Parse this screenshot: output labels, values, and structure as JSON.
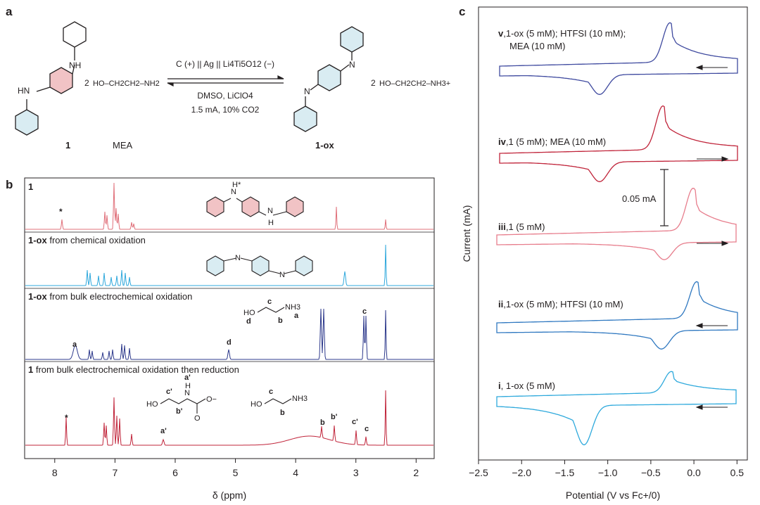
{
  "panel_labels": {
    "a": "a",
    "b": "b",
    "c": "c"
  },
  "panel_a": {
    "compound_1_label": "1",
    "mea_label": "MEA",
    "compound_1ox_label": "1-ox",
    "mea_reactant_prefix": "2",
    "mea_formula": "HO–CH2CH2–NH2",
    "product_prefix": "2",
    "product_formula": "HO–CH2CH2–NH3+",
    "cell_line": "C (+) || Ag || Li4Ti5O12 (−)",
    "solvent_line": "DMSO, LiClO4",
    "conditions_line": "1.5 mA, 10% CO2",
    "nh_label": "NH",
    "hn_label": "HN",
    "n_label": "N"
  },
  "panel_b": {
    "spectra": [
      {
        "title_bold": "1",
        "title_rest": "",
        "color": "#e0707a"
      },
      {
        "title_bold": "1-ox",
        "title_rest": " from chemical oxidation",
        "color": "#2fa8dc"
      },
      {
        "title_bold": "1-ox",
        "title_rest": " from bulk electrochemical oxidation",
        "color": "#2e3a8c"
      },
      {
        "title_bold": "1",
        "title_rest": " from bulk electrochemical oxidation then reduction",
        "color": "#c0243a"
      }
    ],
    "peak_labels": {
      "star1": "*",
      "a": "a",
      "d": "d",
      "c": "c",
      "star4": "*",
      "a_prime": "a'",
      "b": "b",
      "b_prime": "b'",
      "c_prime": "c'",
      "c4": "c"
    },
    "struct_labels": {
      "ho": "HO",
      "nh3": "NH3",
      "a": "a",
      "b": "b",
      "c": "c",
      "d": "d",
      "c_prime": "c'",
      "b_prime": "b'",
      "a_prime": "a'",
      "carbamate_n": "N",
      "carbamate_h": "H",
      "carbamate_o": "O",
      "carbamate_ominus": "O−",
      "nh_star": "H*",
      "n_h": "N",
      "h": "H"
    },
    "x_axis": {
      "label": "δ (ppm)",
      "ticks": [
        "8",
        "7",
        "6",
        "5",
        "4",
        "3",
        "2"
      ],
      "range": [
        8.5,
        1.7
      ]
    }
  },
  "panel_c": {
    "y_label": "Current (mA)",
    "x_label": "Potential (V vs Fc+/0)",
    "x_ticks": [
      "−2.5",
      "−2.0",
      "−1.5",
      "−1.0",
      "−0.5",
      "0.0",
      "0.5"
    ],
    "scale_bar_label": "0.05 mA",
    "curves": [
      {
        "label_bold": "v",
        "label_rest": ",1-ox (5 mM); HTFSI (10 mM);",
        "label_line2": "MEA (10 mM)",
        "color": "#3f4a9f"
      },
      {
        "label_bold": "iv",
        "label_rest": ",1 (5 mM); MEA (10 mM)",
        "label_line2": "",
        "color": "#c0243a"
      },
      {
        "label_bold": "iii",
        "label_rest": ",1 (5 mM)",
        "label_line2": "",
        "color": "#e77d8c"
      },
      {
        "label_bold": "ii",
        "label_rest": ",1-ox (5 mM); HTFSI (10 mM)",
        "label_line2": "",
        "color": "#2f78c0"
      },
      {
        "label_bold": "i",
        "label_rest": ", 1-ox (5 mM)",
        "label_line2": "",
        "color": "#2ea9dc"
      }
    ]
  }
}
